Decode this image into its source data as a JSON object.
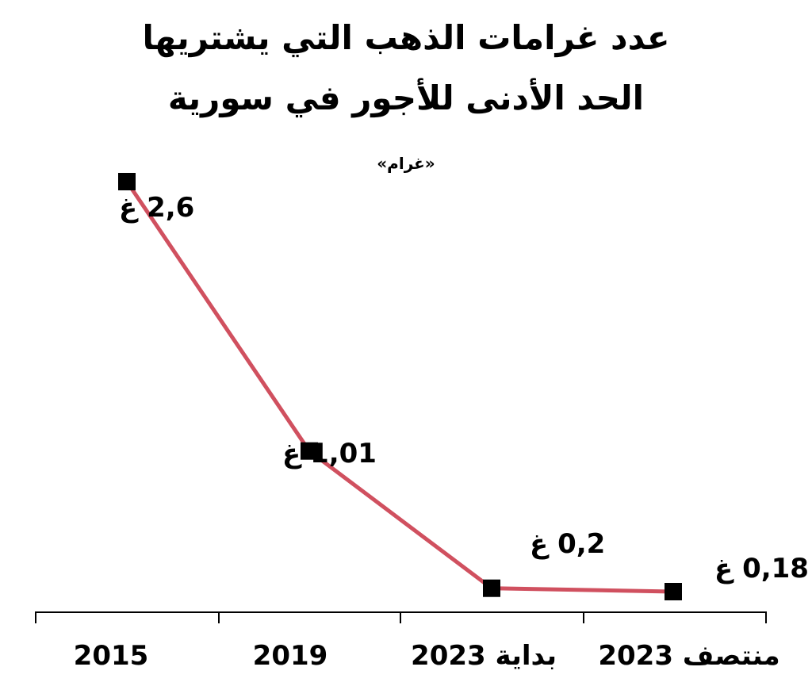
{
  "chart_data": {
    "type": "line",
    "title_line1": "عدد غرامات الذهب التي يشتريها",
    "title_line2": "الحد الأدنى للأجور في سورية",
    "subtitle": "«غرام»",
    "categories": [
      "2015",
      "2019",
      "بداية 2023",
      "منتصف 2023"
    ],
    "values": [
      2.6,
      1.01,
      0.2,
      0.18
    ],
    "data_labels": [
      "2,6 غ",
      "1,01 غ",
      "0,2 غ",
      "0,18 غ"
    ],
    "xlabel": "",
    "ylabel": "",
    "grid": false,
    "colors": {
      "line": "#d0505f",
      "marker": "#000000",
      "axis": "#000000"
    }
  }
}
